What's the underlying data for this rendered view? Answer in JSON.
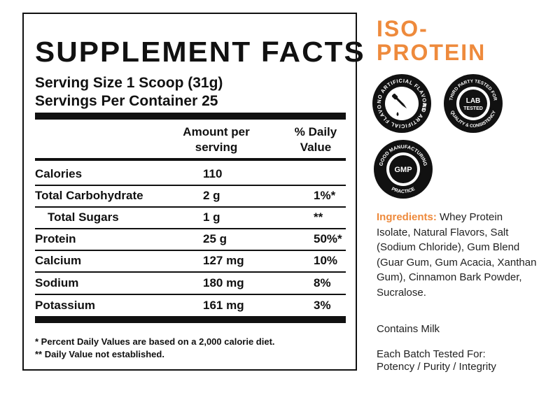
{
  "facts": {
    "title": "SUPPLEMENT FACTS",
    "serving_size": "Serving Size 1 Scoop (31g)",
    "servings_per_container": "Servings Per Container 25",
    "col_amount": "Amount per serving",
    "col_amount_l1": "Amount per",
    "col_amount_l2": "serving",
    "col_dv_l1": "% Daily",
    "col_dv_l2": "Value",
    "rows": [
      {
        "name": "Calories",
        "amount": "110",
        "dv": ""
      },
      {
        "name": "Total Carbohydrate",
        "amount": "2 g",
        "dv": "1%*"
      },
      {
        "name": "Total Sugars",
        "amount": "1 g",
        "dv": "**"
      },
      {
        "name": "Protein",
        "amount": "25 g",
        "dv": "50%*"
      },
      {
        "name": "Calcium",
        "amount": "127 mg",
        "dv": "10%"
      },
      {
        "name": "Sodium",
        "amount": "180 mg",
        "dv": "8%"
      },
      {
        "name": "Potassium",
        "amount": "161 mg",
        "dv": "3%"
      }
    ],
    "footnote_1": "* Percent Daily Values are based on a 2,000 calorie diet.",
    "footnote_2": "** Daily Value not established."
  },
  "brand": {
    "line1": "ISO-",
    "line2": "PROTEIN",
    "accent_color": "#ee8a3c"
  },
  "badges": [
    {
      "icon": "no-artificial-flavors-icon",
      "ring_text": "NO ARTIFICIAL FLAVORS"
    },
    {
      "icon": "lab-tested-icon",
      "center_l1": "LAB",
      "center_l2": "TESTED",
      "ring_text_top": "THIRD PARTY TESTED FOR",
      "ring_text_bottom": "QUALITY & CONSISTENCY"
    },
    {
      "icon": "gmp-icon",
      "center": "GMP",
      "ring_text_top": "GOOD MANUFACTURING",
      "ring_text_bottom": "PRACTICE"
    }
  ],
  "ingredients": {
    "label": "Ingredients:",
    "text": " Whey Protein Isolate, Natural Flavors, Salt (Sodium Chloride), Gum Blend (Guar Gum, Gum Acacia, Xanthan Gum), Cinnamon Bark Powder, Sucralose."
  },
  "contains": "Contains Milk",
  "batch": {
    "line1": "Each Batch Tested For:",
    "line2": "Potency / Purity / Integrity"
  }
}
